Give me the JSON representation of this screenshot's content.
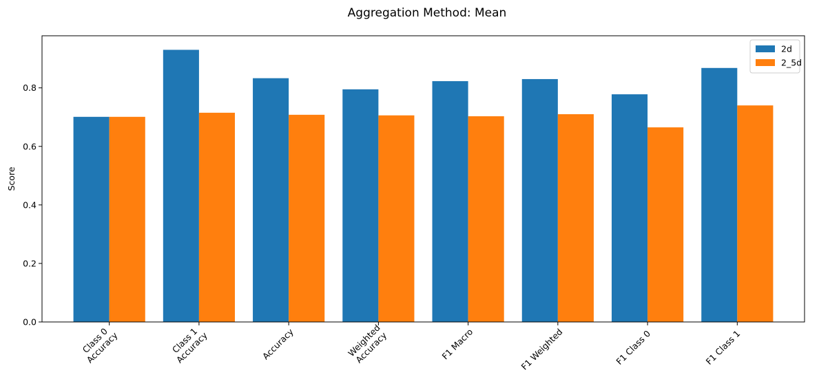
{
  "chart_data": {
    "type": "bar",
    "title": "Aggregation Method: Mean",
    "xlabel": "",
    "ylabel": "Score",
    "categories": [
      [
        "Class 0",
        "Accuracy"
      ],
      [
        "Class 1",
        "Accuracy"
      ],
      [
        "Accuracy"
      ],
      [
        "Weighted",
        "Accuracy"
      ],
      [
        "F1 Macro"
      ],
      [
        "F1 Weighted"
      ],
      [
        "F1 Class 0"
      ],
      [
        "F1 Class 1"
      ]
    ],
    "series": [
      {
        "name": "2d",
        "color": "#1f77b4",
        "values": [
          0.701,
          0.93,
          0.833,
          0.795,
          0.823,
          0.83,
          0.778,
          0.868
        ]
      },
      {
        "name": "2_5d",
        "color": "#ff7f0e",
        "values": [
          0.701,
          0.715,
          0.708,
          0.706,
          0.703,
          0.71,
          0.665,
          0.74
        ]
      }
    ],
    "ylim": [
      0,
      0.978
    ],
    "yticks": [
      0.0,
      0.2,
      0.4,
      0.6,
      0.8
    ],
    "ytick_labels": [
      "0.0",
      "0.2",
      "0.4",
      "0.6",
      "0.8"
    ],
    "grid": false,
    "legend_position": "top-right",
    "x_tick_rotation": 45
  }
}
